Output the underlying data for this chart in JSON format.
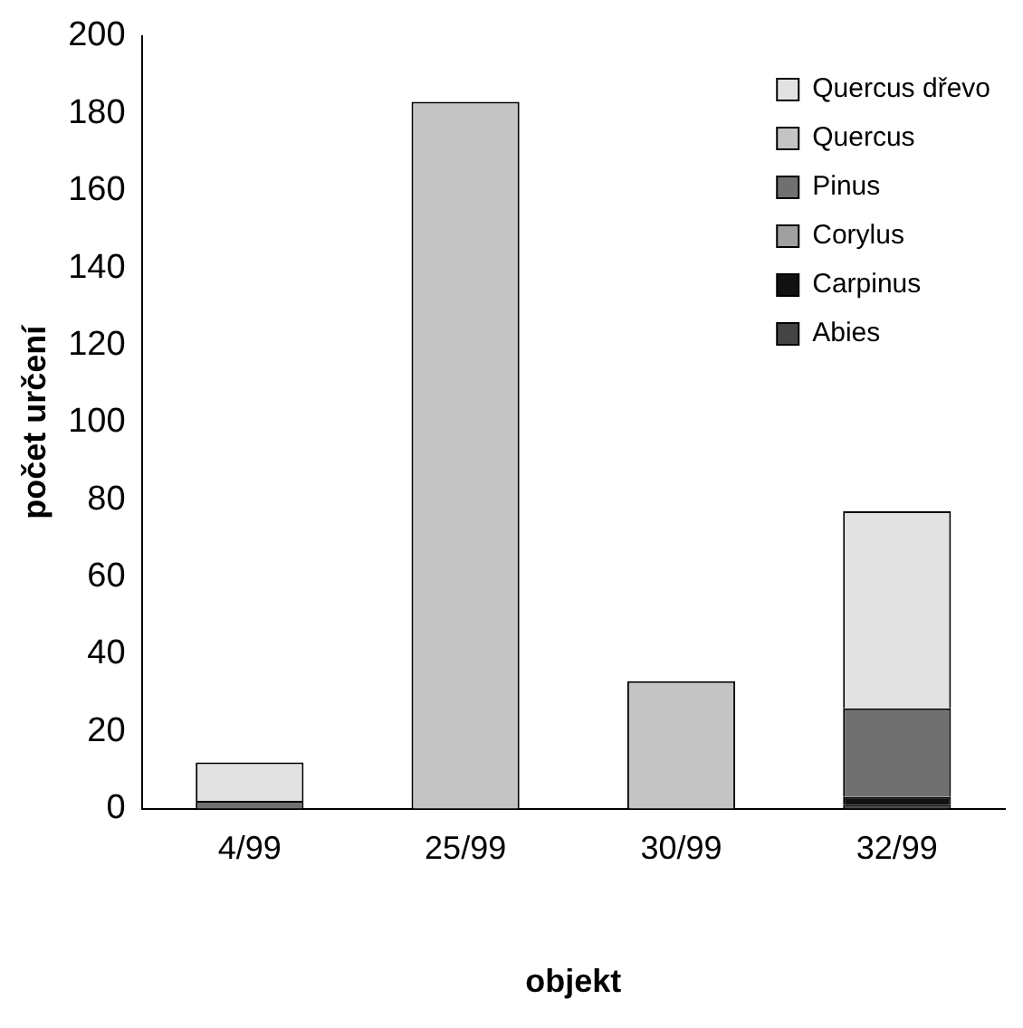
{
  "chart_data": {
    "type": "bar",
    "stacked": true,
    "xlabel": "objekt",
    "ylabel": "počet určení",
    "categories": [
      "4/99",
      "25/99",
      "30/99",
      "32/99"
    ],
    "series": [
      {
        "name": "Abies",
        "color": "#444444",
        "values": [
          0,
          0,
          0,
          1
        ]
      },
      {
        "name": "Carpinus",
        "color": "#111111",
        "values": [
          0,
          0,
          0,
          2
        ]
      },
      {
        "name": "Corylus",
        "color": "#a0a0a0",
        "values": [
          0,
          0,
          0,
          0
        ]
      },
      {
        "name": "Pinus",
        "color": "#707070",
        "values": [
          2,
          0,
          0,
          23
        ]
      },
      {
        "name": "Quercus",
        "color": "#c4c4c4",
        "values": [
          0,
          183,
          33,
          0
        ]
      },
      {
        "name": "Quercus dřevo",
        "color": "#e2e2e2",
        "values": [
          10,
          0,
          0,
          51
        ]
      }
    ],
    "ylim": [
      0,
      200
    ],
    "yticks": [
      0,
      20,
      40,
      60,
      80,
      100,
      120,
      140,
      160,
      180,
      200
    ],
    "grid": false,
    "legend": "top right"
  }
}
